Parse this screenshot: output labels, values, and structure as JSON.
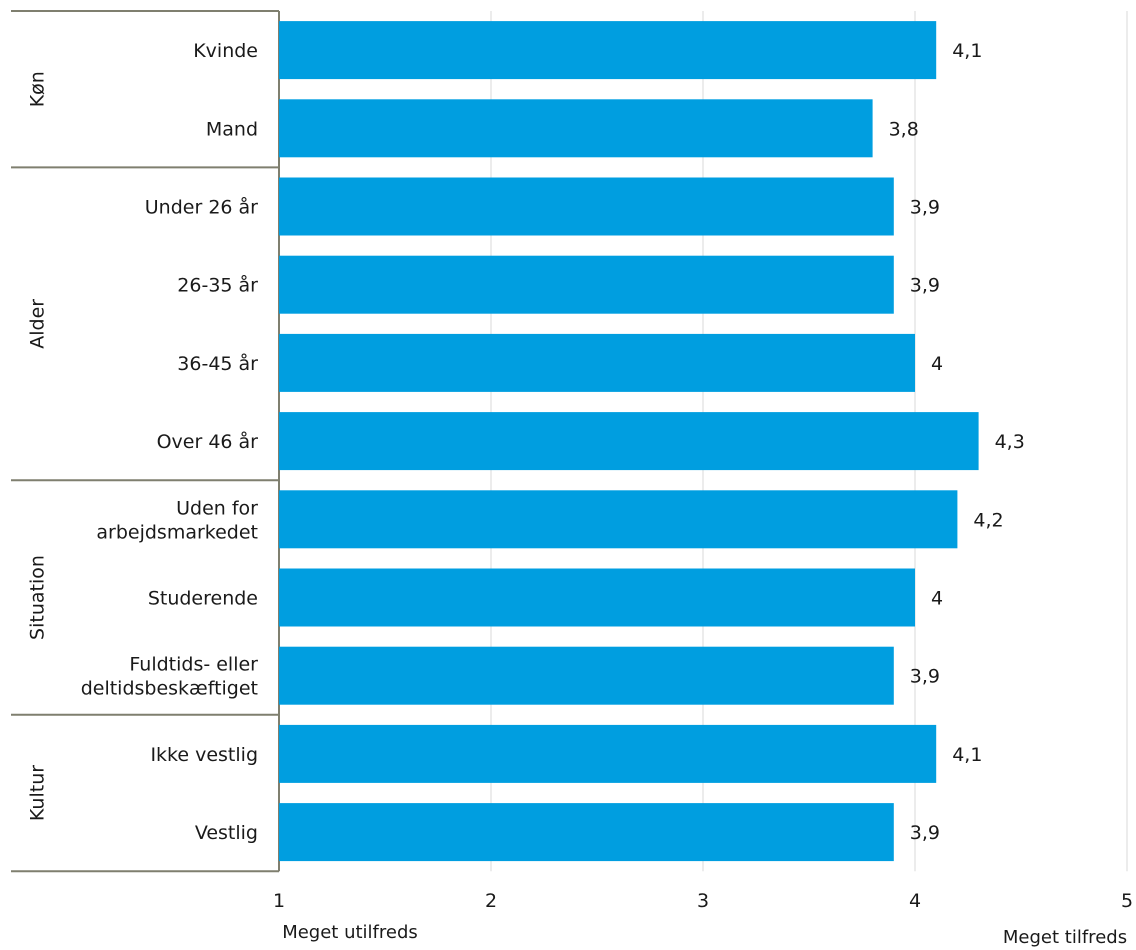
{
  "chart_data": {
    "type": "bar",
    "orientation": "horizontal",
    "xlim": [
      1,
      5
    ],
    "xticks": [
      1,
      2,
      3,
      4,
      5
    ],
    "grid": "vertical",
    "groups": [
      {
        "label": "Køn",
        "categories": [
          "Kvinde",
          "Mand"
        ]
      },
      {
        "label": "Alder",
        "categories": [
          "Under 26 år",
          "26-35 år",
          "36-45 år",
          "Over 46 år"
        ]
      },
      {
        "label": "Situation",
        "categories": [
          "Uden for arbejdsmarkedet",
          "Studerende",
          "Fuldtids- eller deltidsbeskæftiget"
        ]
      },
      {
        "label": "Kultur",
        "categories": [
          "Ikke vestlig",
          "Vestlig"
        ]
      }
    ],
    "category_lines": [
      [
        "Kvinde"
      ],
      [
        "Mand"
      ],
      [
        "Under 26 år"
      ],
      [
        "26-35 år"
      ],
      [
        "36-45 år"
      ],
      [
        "Over 46 år"
      ],
      [
        "Uden for",
        "arbejdsmarkedet"
      ],
      [
        "Studerende"
      ],
      [
        "Fuldtids- eller",
        "deltidsbeskæftiget"
      ],
      [
        "Ikke vestlig"
      ],
      [
        "Vestlig"
      ]
    ],
    "values": [
      4.1,
      3.8,
      3.9,
      3.9,
      4.0,
      4.3,
      4.2,
      4.0,
      3.9,
      4.1,
      3.9
    ],
    "value_labels": [
      "4,1",
      "3,8",
      "3,9",
      "3,9",
      "4",
      "4,3",
      "4,2",
      "4",
      "3,9",
      "4,1",
      "3,9"
    ],
    "xlabel_min": "Meget utilfreds",
    "xlabel_max": "Meget tilfreds",
    "bar_color": "#009ee0",
    "grid_color": "#d9d9d9",
    "frame_color": "#7f7f6f"
  }
}
